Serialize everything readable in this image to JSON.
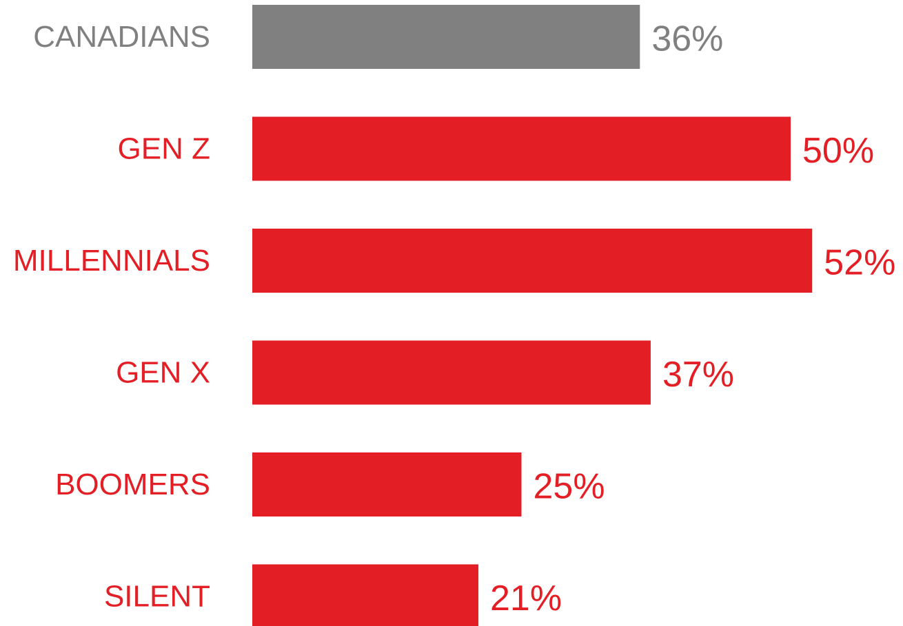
{
  "chart_data": {
    "type": "barh",
    "categories": [
      "CANADIANS",
      "GEN Z",
      "MILLENNIALS",
      "GEN X",
      "BOOMERS",
      "SILENT"
    ],
    "values": [
      36,
      50,
      52,
      37,
      25,
      21
    ],
    "value_labels": [
      "36%",
      "50%",
      "52%",
      "37%",
      "25%",
      "21%"
    ],
    "colors": [
      "#808080",
      "#e31e24",
      "#e31e24",
      "#e31e24",
      "#e31e24",
      "#e31e24"
    ]
  }
}
